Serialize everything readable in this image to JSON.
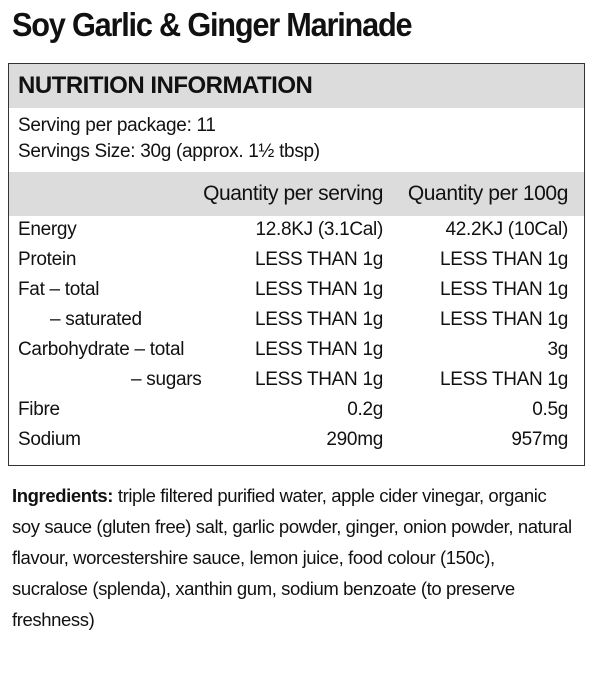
{
  "product_title": "Soy Garlic & Ginger Marinade",
  "panel": {
    "header": "NUTRITION INFORMATION",
    "serving_per_package": "Serving per package: 11",
    "serving_size": "Servings Size: 30g (approx. 1½ tbsp)",
    "col_per_serving": "Quantity per serving",
    "col_per_100g": "Quantity per 100g",
    "rows": [
      {
        "label": "Energy",
        "per_serving": "12.8KJ  (3.1Cal)",
        "per_100g": "42.2KJ (10Cal)"
      },
      {
        "label": "Protein",
        "per_serving": "LESS THAN 1g",
        "per_100g": "LESS THAN 1g"
      },
      {
        "label": "Fat – total",
        "per_serving": "LESS THAN 1g",
        "per_100g": "LESS THAN 1g"
      },
      {
        "label": "– saturated",
        "per_serving": "LESS THAN 1g",
        "per_100g": "LESS THAN 1g"
      },
      {
        "label": "Carbohydrate – total",
        "per_serving": "LESS THAN 1g",
        "per_100g": "3g"
      },
      {
        "label": "– sugars",
        "per_serving": "LESS THAN 1g",
        "per_100g": "LESS THAN 1g"
      },
      {
        "label": "Fibre",
        "per_serving": "0.2g",
        "per_100g": "0.5g"
      },
      {
        "label": "Sodium",
        "per_serving": "290mg",
        "per_100g": "957mg"
      }
    ]
  },
  "ingredients": {
    "label": "Ingredients:",
    "text": "triple filtered purified water, apple cider vinegar, organic soy sauce (gluten free) salt, garlic powder, ginger, onion powder, natural flavour, worcestershire sauce, lemon juice, food colour (150c), sucralose (splenda), xanthin gum, sodium benzoate (to preserve freshness)"
  }
}
